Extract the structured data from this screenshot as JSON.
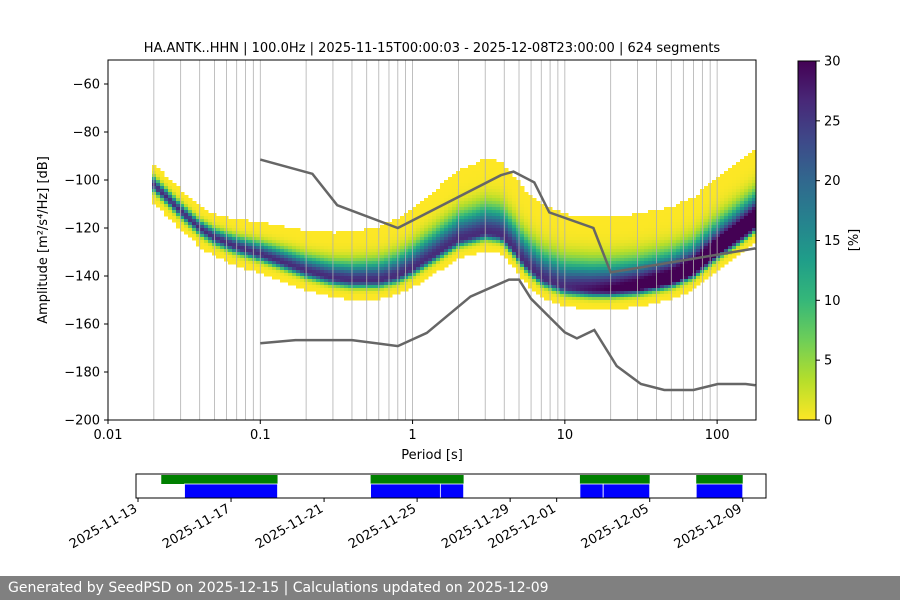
{
  "footer": {
    "text": "Generated by SeedPSD on 2025-12-15 | Calculations updated on 2025-12-09"
  },
  "chart_data": [
    {
      "type": "heatmap",
      "title": "HA.ANTK..HHN | 100.0Hz | 2025-11-15T00:00:03 - 2025-12-08T23:00:00 | 624 segments",
      "xlabel": "Period [s]",
      "ylabel": "Amplitude [m²/s⁴/Hz] [dB]",
      "x_scale": "log",
      "xlim": [
        0.01,
        180
      ],
      "ylim": [
        -200,
        -50
      ],
      "x_ticks": [
        0.01,
        0.1,
        1,
        10,
        100
      ],
      "x_tick_labels": [
        "0.01",
        "0.1",
        "1",
        "10",
        "100"
      ],
      "y_ticks": [
        -200,
        -180,
        -160,
        -140,
        -120,
        -100,
        -80,
        -60
      ],
      "y_tick_labels": [
        "−200",
        "−180",
        "−160",
        "−140",
        "−120",
        "−100",
        "−80",
        "−60"
      ],
      "grid": "vertical",
      "colorbar": {
        "label": "[%]",
        "range": [
          0,
          30
        ],
        "ticks": [
          0,
          5,
          10,
          15,
          20,
          25,
          30
        ],
        "colors": [
          "#fde725",
          "#b5de2b",
          "#6ece58",
          "#35b779",
          "#1f9e89",
          "#26828e",
          "#31688e",
          "#3e4989",
          "#482878",
          "#440154"
        ]
      },
      "mode_curve": {
        "period": [
          0.02,
          0.025,
          0.03,
          0.04,
          0.05,
          0.07,
          0.1,
          0.15,
          0.2,
          0.3,
          0.4,
          0.6,
          0.8,
          1.0,
          1.5,
          2.0,
          3.0,
          3.8,
          4.5,
          5.5,
          7.0,
          10,
          15,
          20,
          30,
          50,
          70,
          100,
          150,
          180
        ],
        "db": [
          -102,
          -108,
          -113,
          -120,
          -124,
          -128,
          -131,
          -135,
          -138,
          -141,
          -142,
          -142,
          -140,
          -137,
          -130,
          -125,
          -122,
          -123,
          -128,
          -135,
          -141,
          -145,
          -146,
          -146,
          -145,
          -142,
          -138,
          -130,
          -122,
          -118
        ]
      },
      "noise_models": [
        {
          "period": [
            0.1,
            0.22,
            0.32,
            0.8,
            3.8,
            4.6,
            6.3,
            7.9,
            15.4,
            20,
            178
          ],
          "db": [
            -91.5,
            -97.4,
            -110.5,
            -120,
            -98,
            -96.5,
            -101,
            -113.5,
            -120,
            -138.5,
            -128.5
          ]
        },
        {
          "period": [
            0.1,
            0.17,
            0.4,
            0.8,
            1.24,
            2.4,
            4.3,
            5.0,
            6.0,
            10,
            12,
            15.6,
            21.9,
            31.6,
            45,
            70,
            101,
            154,
            178
          ],
          "db": [
            -168,
            -166.7,
            -166.7,
            -169.2,
            -163.7,
            -148.6,
            -141.5,
            -141.5,
            -149.5,
            -163.5,
            -166,
            -162.5,
            -177.5,
            -185,
            -187.5,
            -187.5,
            -185,
            -185,
            -185.5
          ]
        }
      ]
    },
    {
      "type": "timeline",
      "tick_labels": [
        "2025-11-13",
        "2025-11-17",
        "2025-11-21",
        "2025-11-25",
        "2025-11-29",
        "2025-12-01",
        "2025-12-05",
        "2025-12-09"
      ],
      "tick_dates": [
        "2025-11-13",
        "2025-11-17",
        "2025-11-21",
        "2025-11-25",
        "2025-11-29",
        "2025-12-01",
        "2025-12-05",
        "2025-12-09"
      ],
      "xlim": [
        "2025-11-13",
        "2025-12-10"
      ],
      "colors": {
        "upper": "#008000",
        "lower": "#0000ff"
      },
      "upper_segments": [
        [
          "2025-11-14",
          "2025-11-19"
        ],
        [
          "2025-11-23",
          "2025-11-27"
        ],
        [
          "2025-12-02",
          "2025-12-05"
        ],
        [
          "2025-12-07",
          "2025-12-09"
        ]
      ],
      "lower_segments": [
        [
          "2025-11-15",
          "2025-11-19"
        ],
        [
          "2025-11-23",
          "2025-11-26"
        ],
        [
          "2025-11-26",
          "2025-11-27"
        ],
        [
          "2025-12-02",
          "2025-12-03"
        ],
        [
          "2025-12-03",
          "2025-12-05"
        ],
        [
          "2025-12-07",
          "2025-12-09"
        ]
      ]
    }
  ]
}
